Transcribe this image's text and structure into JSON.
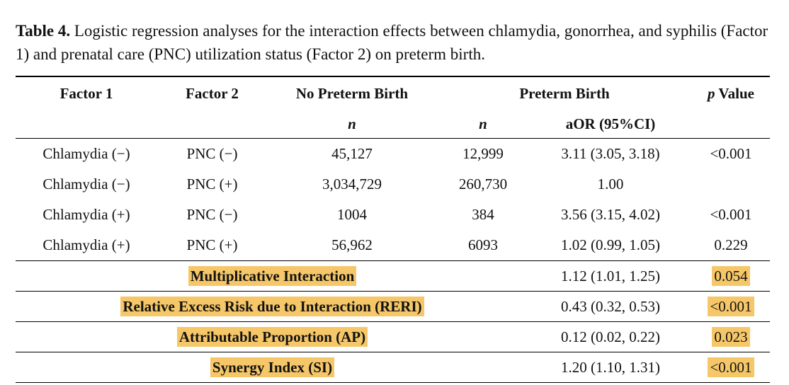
{
  "caption": {
    "label": "Table 4.",
    "text": "Logistic regression analyses for the interaction effects between chlamydia, gonorrhea, and syphilis (Factor 1) and prenatal care (PNC) utilization status (Factor 2) on preterm birth."
  },
  "header": {
    "factor1": "Factor 1",
    "factor2": "Factor 2",
    "no_preterm": "No Preterm Birth",
    "preterm": "Preterm Birth",
    "p_italic": "p",
    "p_rest": "Value"
  },
  "subheader": {
    "n1": "n",
    "n2": "n",
    "aor": "aOR (95%CI)"
  },
  "rows": [
    {
      "factor1": "Chlamydia (−)",
      "factor2": "PNC (−)",
      "n_no": "45,127",
      "n_pre": "12,999",
      "aor": "3.11 (3.05, 3.18)",
      "p": "<0.001"
    },
    {
      "factor1": "Chlamydia (−)",
      "factor2": "PNC (+)",
      "n_no": "3,034,729",
      "n_pre": "260,730",
      "aor": "1.00",
      "p": ""
    },
    {
      "factor1": "Chlamydia (+)",
      "factor2": "PNC (−)",
      "n_no": "1004",
      "n_pre": "384",
      "aor": "3.56 (3.15, 4.02)",
      "p": "<0.001"
    },
    {
      "factor1": "Chlamydia (+)",
      "factor2": "PNC (+)",
      "n_no": "56,962",
      "n_pre": "6093",
      "aor": "1.02 (0.99, 1.05)",
      "p": "0.229"
    }
  ],
  "interactions": [
    {
      "label": "Multiplicative Interaction",
      "aor": "1.12 (1.01, 1.25)",
      "p": "0.054"
    },
    {
      "label": "Relative Excess Risk due to Interaction (RERI)",
      "aor": "0.43 (0.32, 0.53)",
      "p": "<0.001"
    },
    {
      "label": "Attributable Proportion (AP)",
      "aor": "0.12 (0.02, 0.22)",
      "p": "0.023"
    },
    {
      "label": "Synergy Index (SI)",
      "aor": "1.20 (1.10, 1.31)",
      "p": "<0.001"
    }
  ],
  "colors": {
    "highlight": "#f6c768"
  }
}
